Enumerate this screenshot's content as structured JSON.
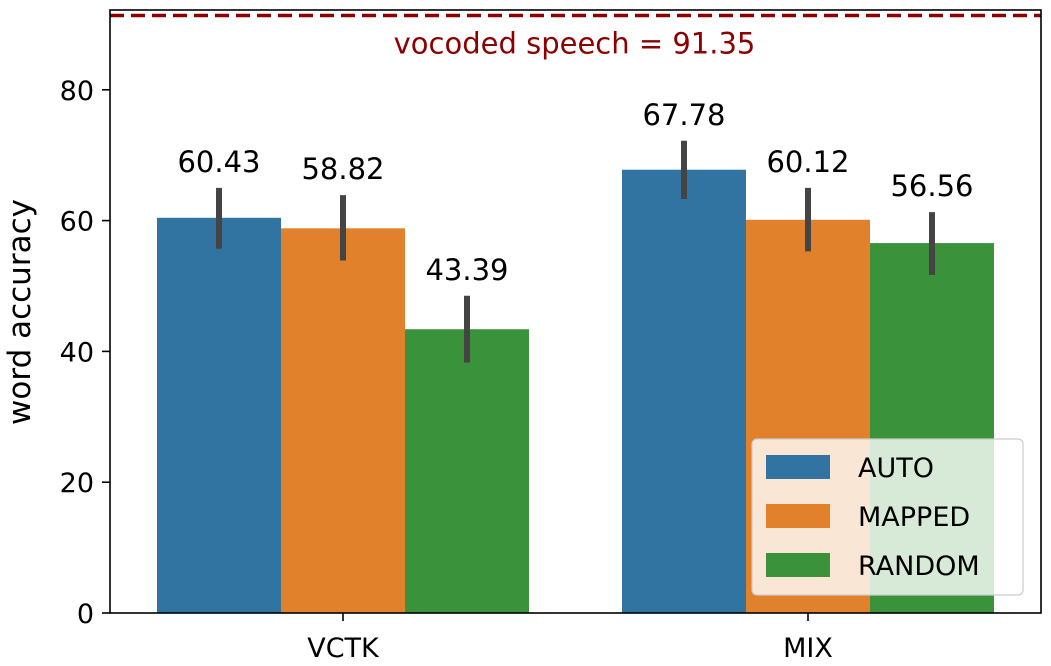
{
  "chart_data": {
    "type": "bar",
    "title": "",
    "xlabel": "",
    "ylabel": "word accuracy",
    "ylim": [
      0,
      92.2
    ],
    "yticks": [
      0,
      20,
      40,
      60,
      80
    ],
    "grid": false,
    "categories": [
      "VCTK",
      "MIX"
    ],
    "series": [
      {
        "name": "AUTO",
        "color": "#3274a1",
        "values": [
          60.43,
          67.78
        ],
        "labels": [
          "60.43",
          "67.78"
        ],
        "err_low": [
          55.7,
          63.3
        ],
        "err_high": [
          65.0,
          72.2
        ]
      },
      {
        "name": "MAPPED",
        "color": "#e1812c",
        "values": [
          58.82,
          60.12
        ],
        "labels": [
          "58.82",
          "60.12"
        ],
        "err_low": [
          53.9,
          55.3
        ],
        "err_high": [
          63.9,
          65.0
        ]
      },
      {
        "name": "RANDOM",
        "color": "#3a923a",
        "values": [
          43.39,
          56.56
        ],
        "labels": [
          "43.39",
          "56.56"
        ],
        "err_low": [
          38.3,
          51.7
        ],
        "err_high": [
          48.5,
          61.3
        ]
      }
    ],
    "reference_line": {
      "value": 91.35,
      "label": "vocoded speech = 91.35",
      "color": "#8b0000",
      "style": "dashed"
    },
    "legend": {
      "placement": "lower-right"
    }
  }
}
